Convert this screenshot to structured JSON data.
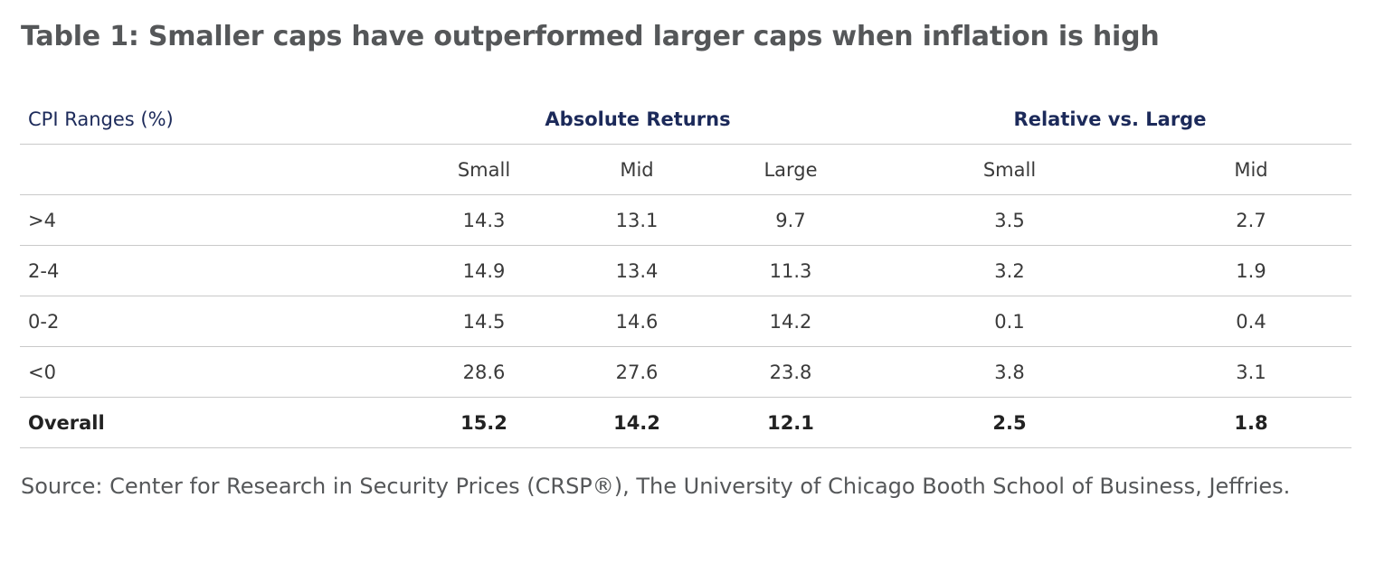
{
  "title": "Table 1: Smaller caps have outperformed larger caps when inflation is high",
  "table": {
    "row_header_label": "CPI Ranges (%)",
    "groups": {
      "absolute": "Absolute Returns",
      "relative": "Relative vs. Large"
    },
    "columns": {
      "abs_small": "Small",
      "abs_mid": "Mid",
      "abs_large": "Large",
      "rel_small": "Small",
      "rel_mid": "Mid"
    },
    "rows": [
      {
        "label": ">4",
        "abs_small": "14.3",
        "abs_mid": "13.1",
        "abs_large": "9.7",
        "rel_small": "3.5",
        "rel_mid": "2.7"
      },
      {
        "label": "2-4",
        "abs_small": "14.9",
        "abs_mid": "13.4",
        "abs_large": "11.3",
        "rel_small": "3.2",
        "rel_mid": "1.9"
      },
      {
        "label": "0-2",
        "abs_small": "14.5",
        "abs_mid": "14.6",
        "abs_large": "14.2",
        "rel_small": "0.1",
        "rel_mid": "0.4"
      },
      {
        "label": "<0",
        "abs_small": "28.6",
        "abs_mid": "27.6",
        "abs_large": "23.8",
        "rel_small": "3.8",
        "rel_mid": "3.1"
      }
    ],
    "total": {
      "label": "Overall",
      "abs_small": "15.2",
      "abs_mid": "14.2",
      "abs_large": "12.1",
      "rel_small": "2.5",
      "rel_mid": "1.8"
    }
  },
  "source": "Source: Center for Research in Security Prices (CRSP®), The University of Chicago Booth School of Business, Jeffries.",
  "colors": {
    "title_text": "#555759",
    "header_text": "#1c2a5a",
    "body_text": "#3a3a3a",
    "rule": "#c9c9c9"
  }
}
